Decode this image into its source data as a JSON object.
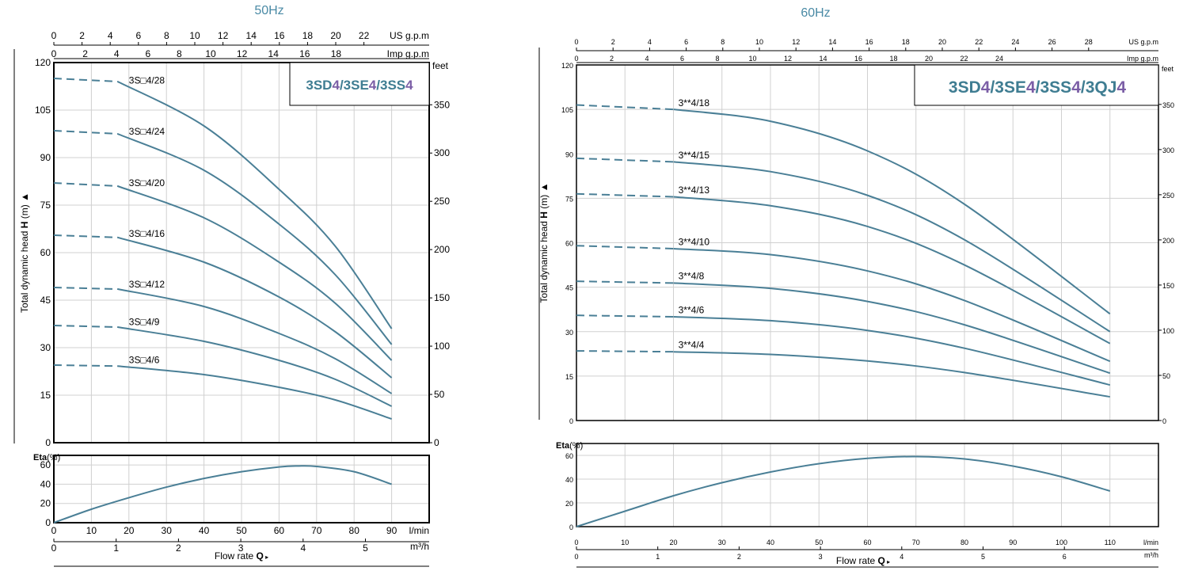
{
  "colors": {
    "curve": "#4a7f96",
    "frame": "#000000",
    "grid": "#d0d0d0",
    "title_teal": "#3f7d92",
    "title_purple": "#7b5ea6",
    "hz_label": "#4a8aa5"
  },
  "chart_data": [
    {
      "type": "line",
      "title": "50Hz",
      "model_title_parts": [
        {
          "text": "3SD",
          "accent": false
        },
        {
          "text": "4",
          "accent": true
        },
        {
          "text": "/3SE",
          "accent": false
        },
        {
          "text": "4",
          "accent": true
        },
        {
          "text": "/3SS",
          "accent": false
        },
        {
          "text": "4",
          "accent": true
        }
      ],
      "ylabel": "Total dynamic head H (m)",
      "ylabel_parts": [
        "Total dynamic head ",
        "H",
        " (m)"
      ],
      "y2label": "feet",
      "xlabel": "Flow rate",
      "xlabel_symbol": "Q",
      "ylim": [
        0,
        120
      ],
      "y_ticks": [
        "0",
        "15",
        "30",
        "45",
        "60",
        "75",
        "90",
        "105",
        "120"
      ],
      "y_ticks_feet": [
        "0",
        "50",
        "100",
        "150",
        "200",
        "250",
        "300",
        "350"
      ],
      "feet_values": [
        0,
        50,
        100,
        150,
        200,
        250,
        300,
        350
      ],
      "top_axis_us": {
        "label": "US g.p.m",
        "ticks": [
          "0",
          "2",
          "4",
          "6",
          "8",
          "10",
          "12",
          "14",
          "16",
          "18",
          "20",
          "22"
        ],
        "values": [
          0,
          2,
          4,
          6,
          8,
          10,
          12,
          14,
          16,
          18,
          20,
          22
        ]
      },
      "top_axis_imp": {
        "label": "Imp g.p.m",
        "ticks": [
          "0",
          "2",
          "4",
          "6",
          "8",
          "10",
          "12",
          "14",
          "16",
          "18"
        ],
        "values": [
          0,
          2,
          4,
          6,
          8,
          10,
          12,
          14,
          16,
          18
        ]
      },
      "x_lmin": {
        "label": "l/min",
        "ticks": [
          "0",
          "10",
          "20",
          "30",
          "40",
          "50",
          "60",
          "70",
          "80",
          "90"
        ],
        "values": [
          0,
          10,
          20,
          30,
          40,
          50,
          60,
          70,
          80,
          90
        ]
      },
      "x_m3h": {
        "label": "m³/h",
        "ticks": [
          "0",
          "1",
          "2",
          "3",
          "4",
          "5"
        ],
        "values": [
          0,
          1,
          2,
          3,
          4,
          5
        ]
      },
      "xlim": [
        0,
        100
      ],
      "x_end": 90,
      "dash_end": 17,
      "label_x": 20,
      "series": [
        {
          "name": "3S□4/28",
          "points": [
            [
              0,
              115
            ],
            [
              17,
              114
            ],
            [
              40,
              100
            ],
            [
              60,
              80
            ],
            [
              75,
              62
            ],
            [
              90,
              36
            ]
          ]
        },
        {
          "name": "3S□4/24",
          "points": [
            [
              0,
              98.5
            ],
            [
              17,
              97.5
            ],
            [
              40,
              86
            ],
            [
              60,
              69
            ],
            [
              75,
              53
            ],
            [
              90,
              31
            ]
          ]
        },
        {
          "name": "3S□4/20",
          "points": [
            [
              0,
              82
            ],
            [
              17,
              81
            ],
            [
              40,
              71
            ],
            [
              60,
              57
            ],
            [
              75,
              44
            ],
            [
              90,
              26
            ]
          ]
        },
        {
          "name": "3S□4/16",
          "points": [
            [
              0,
              65.5
            ],
            [
              17,
              64.8
            ],
            [
              40,
              57
            ],
            [
              60,
              46
            ],
            [
              75,
              35
            ],
            [
              90,
              20.5
            ]
          ]
        },
        {
          "name": "3S□4/12",
          "points": [
            [
              0,
              49
            ],
            [
              17,
              48.5
            ],
            [
              40,
              43
            ],
            [
              60,
              34.5
            ],
            [
              75,
              26.5
            ],
            [
              90,
              15.5
            ]
          ]
        },
        {
          "name": "3S□4/9",
          "points": [
            [
              0,
              37
            ],
            [
              17,
              36.5
            ],
            [
              40,
              32
            ],
            [
              60,
              26
            ],
            [
              75,
              20
            ],
            [
              90,
              11.5
            ]
          ]
        },
        {
          "name": "3S□4/6",
          "points": [
            [
              0,
              24.5
            ],
            [
              17,
              24.2
            ],
            [
              40,
              21.5
            ],
            [
              60,
              17.5
            ],
            [
              75,
              13.5
            ],
            [
              90,
              7.5
            ]
          ]
        }
      ],
      "eta": {
        "label": "Eta",
        "unit": "(%)",
        "ylim": [
          0,
          70
        ],
        "y_ticks": [
          "0",
          "20",
          "40",
          "60"
        ],
        "points": [
          [
            0,
            0
          ],
          [
            10,
            14
          ],
          [
            20,
            26
          ],
          [
            30,
            37
          ],
          [
            40,
            46
          ],
          [
            50,
            53
          ],
          [
            60,
            58
          ],
          [
            65,
            59
          ],
          [
            70,
            58.5
          ],
          [
            80,
            53
          ],
          [
            90,
            40
          ]
        ]
      }
    },
    {
      "type": "line",
      "title": "60Hz",
      "model_title_parts": [
        {
          "text": "3SD",
          "accent": false
        },
        {
          "text": "4",
          "accent": true
        },
        {
          "text": "/3SE",
          "accent": false
        },
        {
          "text": "4",
          "accent": true
        },
        {
          "text": "/3SS",
          "accent": false
        },
        {
          "text": "4",
          "accent": true
        },
        {
          "text": "/3QJ",
          "accent": false
        },
        {
          "text": "4",
          "accent": true
        }
      ],
      "ylabel": "Total dynamic head H (m)",
      "ylabel_parts": [
        "Total dynamic head ",
        "H",
        " (m)"
      ],
      "y2label": "feet",
      "xlabel": "Flow rate",
      "xlabel_symbol": "Q",
      "ylim": [
        0,
        120
      ],
      "y_ticks": [
        "0",
        "15",
        "30",
        "45",
        "60",
        "75",
        "90",
        "105",
        "120"
      ],
      "y_ticks_feet": [
        "0",
        "50",
        "100",
        "150",
        "200",
        "250",
        "300",
        "350"
      ],
      "feet_values": [
        0,
        50,
        100,
        150,
        200,
        250,
        300,
        350
      ],
      "top_axis_us": {
        "label": "US g.p.m",
        "ticks": [
          "0",
          "2",
          "4",
          "6",
          "8",
          "10",
          "12",
          "14",
          "16",
          "18",
          "20",
          "22",
          "24",
          "26",
          "28"
        ],
        "values": [
          0,
          2,
          4,
          6,
          8,
          10,
          12,
          14,
          16,
          18,
          20,
          22,
          24,
          26,
          28
        ]
      },
      "top_axis_imp": {
        "label": "Imp g.p.m",
        "ticks": [
          "0",
          "2",
          "4",
          "6",
          "8",
          "10",
          "12",
          "14",
          "16",
          "18",
          "20",
          "22",
          "24"
        ],
        "values": [
          0,
          2,
          4,
          6,
          8,
          10,
          12,
          14,
          16,
          18,
          20,
          22,
          24
        ]
      },
      "x_lmin": {
        "label": "l/min",
        "ticks": [
          "0",
          "10",
          "20",
          "30",
          "40",
          "50",
          "60",
          "70",
          "80",
          "90",
          "100",
          "110"
        ],
        "values": [
          0,
          10,
          20,
          30,
          40,
          50,
          60,
          70,
          80,
          90,
          100,
          110
        ]
      },
      "x_m3h": {
        "label": "m³/h",
        "ticks": [
          "0",
          "1",
          "2",
          "3",
          "4",
          "5",
          "6"
        ],
        "values": [
          0,
          1,
          2,
          3,
          4,
          5,
          6
        ]
      },
      "xlim": [
        0,
        120
      ],
      "x_end": 110,
      "dash_end": 20,
      "label_x": 21,
      "series": [
        {
          "name": "3**4/18",
          "points": [
            [
              0,
              106.5
            ],
            [
              20,
              105
            ],
            [
              40,
              101
            ],
            [
              60,
              91
            ],
            [
              80,
              73
            ],
            [
              110,
              36
            ]
          ]
        },
        {
          "name": "3**4/15",
          "points": [
            [
              0,
              88.5
            ],
            [
              20,
              87.3
            ],
            [
              40,
              84
            ],
            [
              60,
              76
            ],
            [
              80,
              61
            ],
            [
              110,
              30
            ]
          ]
        },
        {
          "name": "3**4/13",
          "points": [
            [
              0,
              76.5
            ],
            [
              20,
              75.5
            ],
            [
              40,
              72.5
            ],
            [
              60,
              65.5
            ],
            [
              80,
              52.5
            ],
            [
              110,
              26
            ]
          ]
        },
        {
          "name": "3**4/10",
          "points": [
            [
              0,
              59
            ],
            [
              20,
              58
            ],
            [
              40,
              56
            ],
            [
              60,
              50.5
            ],
            [
              80,
              40.5
            ],
            [
              110,
              20
            ]
          ]
        },
        {
          "name": "3**4/8",
          "points": [
            [
              0,
              47
            ],
            [
              20,
              46.4
            ],
            [
              40,
              44.6
            ],
            [
              60,
              40.2
            ],
            [
              80,
              32.3
            ],
            [
              110,
              16
            ]
          ]
        },
        {
          "name": "3**4/6",
          "points": [
            [
              0,
              35.5
            ],
            [
              20,
              35
            ],
            [
              40,
              33.7
            ],
            [
              60,
              30.4
            ],
            [
              80,
              24.4
            ],
            [
              110,
              12
            ]
          ]
        },
        {
          "name": "3**4/4",
          "points": [
            [
              0,
              23.5
            ],
            [
              20,
              23.2
            ],
            [
              40,
              22.3
            ],
            [
              60,
              20.1
            ],
            [
              80,
              16.2
            ],
            [
              110,
              8
            ]
          ]
        }
      ],
      "eta": {
        "label": "Eta",
        "unit": "(%)",
        "ylim": [
          0,
          70
        ],
        "y_ticks": [
          "0",
          "20",
          "40",
          "60"
        ],
        "points": [
          [
            0,
            0
          ],
          [
            10,
            13
          ],
          [
            20,
            26
          ],
          [
            30,
            37
          ],
          [
            40,
            46
          ],
          [
            50,
            53
          ],
          [
            60,
            57.5
          ],
          [
            70,
            59
          ],
          [
            80,
            57
          ],
          [
            90,
            51
          ],
          [
            100,
            42
          ],
          [
            110,
            30
          ]
        ]
      }
    }
  ]
}
